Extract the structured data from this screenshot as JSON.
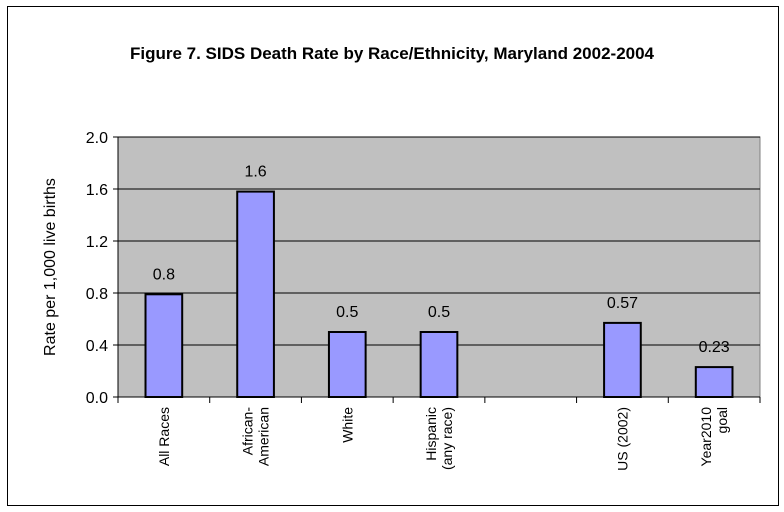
{
  "chart_data": {
    "type": "bar",
    "title": "Figure 7. SIDS Death Rate by Race/Ethnicity, Maryland 2002-2004",
    "xlabel": "",
    "ylabel": "Rate per 1,000 live births",
    "ylim": [
      0,
      2.0
    ],
    "yticks": [
      "0.0",
      "0.4",
      "0.8",
      "1.2",
      "1.6",
      "2.0"
    ],
    "grid": true,
    "legend": "none",
    "plot_bg": "#c0c0c0",
    "bar_color": "#9999ff",
    "categories": [
      {
        "lines": [
          "All Races"
        ]
      },
      {
        "lines": [
          "African-",
          "American"
        ]
      },
      {
        "lines": [
          "White"
        ]
      },
      {
        "lines": [
          "Hispanic",
          "(any race)"
        ]
      },
      {
        "lines": []
      },
      {
        "lines": [
          "US (2002)"
        ]
      },
      {
        "lines": [
          "Year2010",
          "goal"
        ]
      }
    ],
    "values": [
      0.79,
      1.58,
      0.5,
      0.5,
      null,
      0.57,
      0.23
    ],
    "data_labels": [
      "0.8",
      "1.6",
      "0.5",
      "0.5",
      "",
      "0.57",
      "0.23"
    ]
  }
}
